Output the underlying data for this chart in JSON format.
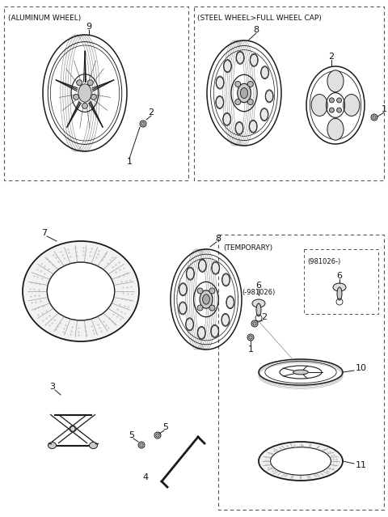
{
  "bg_color": "#ffffff",
  "line_color": "#1a1a1a",
  "dashed_color": "#555555",
  "sections": {
    "top_left_label": "(ALUMINUM WHEEL)",
    "top_right_label": "(STEEL WHEEL>FULL WHEEL CAP)",
    "temporary_label": "(TEMPORARY)"
  },
  "fs_small": 6.5,
  "fs_label": 7.5,
  "fs_part": 8.0
}
